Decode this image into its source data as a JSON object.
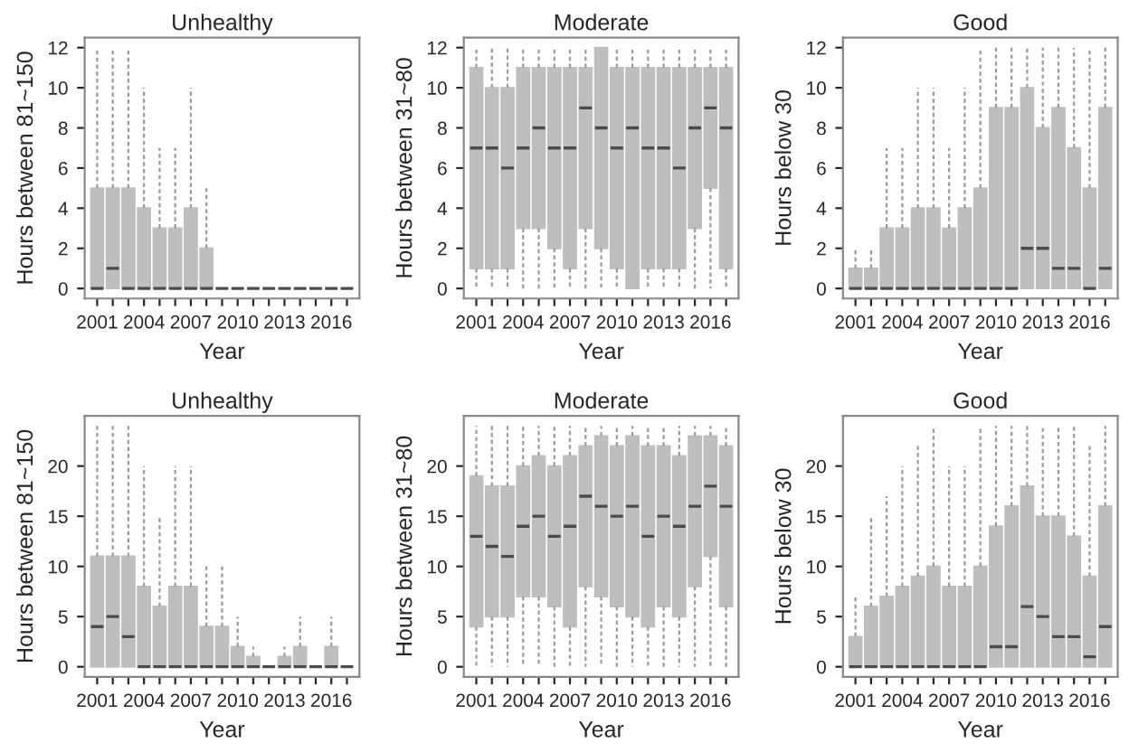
{
  "chart_data": [
    {
      "type": "box",
      "title": "Unhealthy",
      "xlabel": "Year",
      "ylabel": "Hours between 81~150",
      "categories": [
        "2001",
        null,
        null,
        "2004",
        null,
        null,
        "2007",
        null,
        null,
        "2010",
        null,
        null,
        "2013",
        null,
        null,
        "2016",
        null
      ],
      "ylim": [
        -0.5,
        12.5
      ],
      "yticks": [
        0,
        2,
        4,
        6,
        8,
        10,
        12
      ],
      "grid": false,
      "legend": false,
      "series": [
        {
          "color": "#bebebe",
          "boxes": [
            {
              "low": 0,
              "q1": 0,
              "median": 0,
              "q3": 5,
              "high": 12
            },
            {
              "low": 0,
              "q1": 0,
              "median": 1,
              "q3": 5,
              "high": 12
            },
            {
              "low": 0,
              "q1": 0,
              "median": 0,
              "q3": 5,
              "high": 12
            },
            {
              "low": 0,
              "q1": 0,
              "median": 0,
              "q3": 4,
              "high": 10
            },
            {
              "low": 0,
              "q1": 0,
              "median": 0,
              "q3": 3,
              "high": 7
            },
            {
              "low": 0,
              "q1": 0,
              "median": 0,
              "q3": 3,
              "high": 7
            },
            {
              "low": 0,
              "q1": 0,
              "median": 0,
              "q3": 4,
              "high": 10
            },
            {
              "low": 0,
              "q1": 0,
              "median": 0,
              "q3": 2,
              "high": 5
            },
            {
              "low": 0,
              "q1": 0,
              "median": 0,
              "q3": 0,
              "high": 0
            },
            {
              "low": 0,
              "q1": 0,
              "median": 0,
              "q3": 0,
              "high": 0
            },
            {
              "low": 0,
              "q1": 0,
              "median": 0,
              "q3": 0,
              "high": 0
            },
            {
              "low": 0,
              "q1": 0,
              "median": 0,
              "q3": 0,
              "high": 0
            },
            {
              "low": 0,
              "q1": 0,
              "median": 0,
              "q3": 0,
              "high": 0
            },
            {
              "low": 0,
              "q1": 0,
              "median": 0,
              "q3": 0,
              "high": 0
            },
            {
              "low": 0,
              "q1": 0,
              "median": 0,
              "q3": 0,
              "high": 0
            },
            {
              "low": 0,
              "q1": 0,
              "median": 0,
              "q3": 0,
              "high": 0
            },
            {
              "low": 0,
              "q1": 0,
              "median": 0,
              "q3": 0,
              "high": 0
            }
          ]
        }
      ]
    },
    {
      "type": "box",
      "title": "Moderate",
      "xlabel": "Year",
      "ylabel": "Hours between 31~80",
      "categories": [
        "2001",
        null,
        null,
        "2004",
        null,
        null,
        "2007",
        null,
        null,
        "2010",
        null,
        null,
        "2013",
        null,
        null,
        "2016",
        null
      ],
      "ylim": [
        -0.5,
        12.5
      ],
      "yticks": [
        0,
        2,
        4,
        6,
        8,
        10,
        12
      ],
      "grid": false,
      "legend": false,
      "series": [
        {
          "color": "#bebebe",
          "boxes": [
            {
              "low": 0,
              "q1": 1,
              "median": 7,
              "q3": 11,
              "high": 12
            },
            {
              "low": 0,
              "q1": 1,
              "median": 7,
              "q3": 10,
              "high": 12
            },
            {
              "low": 0,
              "q1": 1,
              "median": 6,
              "q3": 10,
              "high": 12
            },
            {
              "low": 0,
              "q1": 3,
              "median": 7,
              "q3": 11,
              "high": 12
            },
            {
              "low": 0,
              "q1": 3,
              "median": 8,
              "q3": 11,
              "high": 12
            },
            {
              "low": 0,
              "q1": 2,
              "median": 7,
              "q3": 11,
              "high": 12
            },
            {
              "low": 0,
              "q1": 1,
              "median": 7,
              "q3": 11,
              "high": 12
            },
            {
              "low": 0,
              "q1": 3,
              "median": 9,
              "q3": 11,
              "high": 12
            },
            {
              "low": 0,
              "q1": 2,
              "median": 8,
              "q3": 12,
              "high": 12
            },
            {
              "low": 0,
              "q1": 1,
              "median": 7,
              "q3": 11,
              "high": 12
            },
            {
              "low": 0,
              "q1": 0,
              "median": 8,
              "q3": 11,
              "high": 12
            },
            {
              "low": 0,
              "q1": 1,
              "median": 7,
              "q3": 11,
              "high": 12
            },
            {
              "low": 0,
              "q1": 1,
              "median": 7,
              "q3": 11,
              "high": 12
            },
            {
              "low": 0,
              "q1": 1,
              "median": 6,
              "q3": 11,
              "high": 12
            },
            {
              "low": 0,
              "q1": 3,
              "median": 8,
              "q3": 11,
              "high": 12
            },
            {
              "low": 0,
              "q1": 5,
              "median": 9,
              "q3": 11,
              "high": 12
            },
            {
              "low": 0,
              "q1": 1,
              "median": 8,
              "q3": 11,
              "high": 12
            }
          ]
        }
      ]
    },
    {
      "type": "box",
      "title": "Good",
      "xlabel": "Year",
      "ylabel": "Hours below 30",
      "categories": [
        "2001",
        null,
        null,
        "2004",
        null,
        null,
        "2007",
        null,
        null,
        "2010",
        null,
        null,
        "2013",
        null,
        null,
        "2016",
        null
      ],
      "ylim": [
        -0.5,
        12.5
      ],
      "yticks": [
        0,
        2,
        4,
        6,
        8,
        10,
        12
      ],
      "grid": false,
      "legend": false,
      "series": [
        {
          "color": "#bebebe",
          "boxes": [
            {
              "low": 0,
              "q1": 0,
              "median": 0,
              "q3": 1,
              "high": 2
            },
            {
              "low": 0,
              "q1": 0,
              "median": 0,
              "q3": 1,
              "high": 2
            },
            {
              "low": 0,
              "q1": 0,
              "median": 0,
              "q3": 3,
              "high": 7
            },
            {
              "low": 0,
              "q1": 0,
              "median": 0,
              "q3": 3,
              "high": 7
            },
            {
              "low": 0,
              "q1": 0,
              "median": 0,
              "q3": 4,
              "high": 10
            },
            {
              "low": 0,
              "q1": 0,
              "median": 0,
              "q3": 4,
              "high": 10
            },
            {
              "low": 0,
              "q1": 0,
              "median": 0,
              "q3": 3,
              "high": 7
            },
            {
              "low": 0,
              "q1": 0,
              "median": 0,
              "q3": 4,
              "high": 10
            },
            {
              "low": 0,
              "q1": 0,
              "median": 0,
              "q3": 5,
              "high": 12
            },
            {
              "low": 0,
              "q1": 0,
              "median": 0,
              "q3": 9,
              "high": 12
            },
            {
              "low": 0,
              "q1": 0,
              "median": 0,
              "q3": 9,
              "high": 12
            },
            {
              "low": 0,
              "q1": 0,
              "median": 2,
              "q3": 10,
              "high": 12
            },
            {
              "low": 0,
              "q1": 0,
              "median": 2,
              "q3": 8,
              "high": 12
            },
            {
              "low": 0,
              "q1": 0,
              "median": 1,
              "q3": 9,
              "high": 12
            },
            {
              "low": 0,
              "q1": 0,
              "median": 1,
              "q3": 7,
              "high": 12
            },
            {
              "low": 0,
              "q1": 0,
              "median": 0,
              "q3": 5,
              "high": 12
            },
            {
              "low": 0,
              "q1": 0,
              "median": 1,
              "q3": 9,
              "high": 12
            }
          ]
        }
      ]
    },
    {
      "type": "box",
      "title": "Unhealthy",
      "xlabel": "Year",
      "ylabel": "Hours between 81~150",
      "categories": [
        "2001",
        null,
        null,
        "2004",
        null,
        null,
        "2007",
        null,
        null,
        "2010",
        null,
        null,
        "2013",
        null,
        null,
        "2016",
        null
      ],
      "ylim": [
        -1,
        25
      ],
      "yticks": [
        0,
        5,
        10,
        15,
        20
      ],
      "grid": false,
      "legend": false,
      "series": [
        {
          "color": "#bebebe",
          "boxes": [
            {
              "low": 0,
              "q1": 0,
              "median": 4,
              "q3": 11,
              "high": 24
            },
            {
              "low": 0,
              "q1": 0,
              "median": 5,
              "q3": 11,
              "high": 24
            },
            {
              "low": 0,
              "q1": 0,
              "median": 3,
              "q3": 11,
              "high": 24
            },
            {
              "low": 0,
              "q1": 0,
              "median": 0,
              "q3": 8,
              "high": 20
            },
            {
              "low": 0,
              "q1": 0,
              "median": 0,
              "q3": 6,
              "high": 15
            },
            {
              "low": 0,
              "q1": 0,
              "median": 0,
              "q3": 8,
              "high": 20
            },
            {
              "low": 0,
              "q1": 0,
              "median": 0,
              "q3": 8,
              "high": 20
            },
            {
              "low": 0,
              "q1": 0,
              "median": 0,
              "q3": 4,
              "high": 10
            },
            {
              "low": 0,
              "q1": 0,
              "median": 0,
              "q3": 4,
              "high": 10
            },
            {
              "low": 0,
              "q1": 0,
              "median": 0,
              "q3": 2,
              "high": 5
            },
            {
              "low": 0,
              "q1": 0,
              "median": 0,
              "q3": 1,
              "high": 2
            },
            {
              "low": 0,
              "q1": 0,
              "median": 0,
              "q3": 0,
              "high": 0
            },
            {
              "low": 0,
              "q1": 0,
              "median": 0,
              "q3": 1,
              "high": 2
            },
            {
              "low": 0,
              "q1": 0,
              "median": 0,
              "q3": 2,
              "high": 5
            },
            {
              "low": 0,
              "q1": 0,
              "median": 0,
              "q3": 0,
              "high": 0
            },
            {
              "low": 0,
              "q1": 0,
              "median": 0,
              "q3": 2,
              "high": 5
            },
            {
              "low": 0,
              "q1": 0,
              "median": 0,
              "q3": 0,
              "high": 0
            }
          ]
        }
      ]
    },
    {
      "type": "box",
      "title": "Moderate",
      "xlabel": "Year",
      "ylabel": "Hours between 31~80",
      "categories": [
        "2001",
        null,
        null,
        "2004",
        null,
        null,
        "2007",
        null,
        null,
        "2010",
        null,
        null,
        "2013",
        null,
        null,
        "2016",
        null
      ],
      "ylim": [
        -1,
        25
      ],
      "yticks": [
        0,
        5,
        10,
        15,
        20
      ],
      "grid": false,
      "legend": false,
      "series": [
        {
          "color": "#bebebe",
          "boxes": [
            {
              "low": 0,
              "q1": 4,
              "median": 13,
              "q3": 19,
              "high": 24
            },
            {
              "low": 0,
              "q1": 5,
              "median": 12,
              "q3": 18,
              "high": 24
            },
            {
              "low": 0,
              "q1": 5,
              "median": 11,
              "q3": 18,
              "high": 24
            },
            {
              "low": 0,
              "q1": 7,
              "median": 14,
              "q3": 20,
              "high": 24
            },
            {
              "low": 0,
              "q1": 7,
              "median": 15,
              "q3": 21,
              "high": 24
            },
            {
              "low": 0,
              "q1": 6,
              "median": 13,
              "q3": 20,
              "high": 24
            },
            {
              "low": 0,
              "q1": 4,
              "median": 14,
              "q3": 21,
              "high": 24
            },
            {
              "low": 0,
              "q1": 8,
              "median": 17,
              "q3": 22,
              "high": 24
            },
            {
              "low": 0,
              "q1": 7,
              "median": 16,
              "q3": 23,
              "high": 24
            },
            {
              "low": 0,
              "q1": 6,
              "median": 15,
              "q3": 22,
              "high": 24
            },
            {
              "low": 0,
              "q1": 5,
              "median": 16,
              "q3": 23,
              "high": 24
            },
            {
              "low": 0,
              "q1": 4,
              "median": 13,
              "q3": 22,
              "high": 24
            },
            {
              "low": 0,
              "q1": 6,
              "median": 15,
              "q3": 22,
              "high": 24
            },
            {
              "low": 0,
              "q1": 5,
              "median": 14,
              "q3": 21,
              "high": 24
            },
            {
              "low": 0,
              "q1": 8,
              "median": 16,
              "q3": 23,
              "high": 24
            },
            {
              "low": 0,
              "q1": 11,
              "median": 18,
              "q3": 23,
              "high": 24
            },
            {
              "low": 0,
              "q1": 6,
              "median": 16,
              "q3": 22,
              "high": 24
            }
          ]
        }
      ]
    },
    {
      "type": "box",
      "title": "Good",
      "xlabel": "Year",
      "ylabel": "Hours below 30",
      "categories": [
        "2001",
        null,
        null,
        "2004",
        null,
        null,
        "2007",
        null,
        null,
        "2010",
        null,
        null,
        "2013",
        null,
        null,
        "2016",
        null
      ],
      "ylim": [
        -1,
        25
      ],
      "yticks": [
        0,
        5,
        10,
        15,
        20
      ],
      "grid": false,
      "legend": false,
      "series": [
        {
          "color": "#bebebe",
          "boxes": [
            {
              "low": 0,
              "q1": 0,
              "median": 0,
              "q3": 3,
              "high": 7
            },
            {
              "low": 0,
              "q1": 0,
              "median": 0,
              "q3": 6,
              "high": 15
            },
            {
              "low": 0,
              "q1": 0,
              "median": 0,
              "q3": 7,
              "high": 17
            },
            {
              "low": 0,
              "q1": 0,
              "median": 0,
              "q3": 8,
              "high": 20
            },
            {
              "low": 0,
              "q1": 0,
              "median": 0,
              "q3": 9,
              "high": 22
            },
            {
              "low": 0,
              "q1": 0,
              "median": 0,
              "q3": 10,
              "high": 24
            },
            {
              "low": 0,
              "q1": 0,
              "median": 0,
              "q3": 8,
              "high": 20
            },
            {
              "low": 0,
              "q1": 0,
              "median": 0,
              "q3": 8,
              "high": 20
            },
            {
              "low": 0,
              "q1": 0,
              "median": 0,
              "q3": 10,
              "high": 24
            },
            {
              "low": 0,
              "q1": 0,
              "median": 2,
              "q3": 14,
              "high": 24
            },
            {
              "low": 0,
              "q1": 0,
              "median": 2,
              "q3": 16,
              "high": 24
            },
            {
              "low": 0,
              "q1": 0,
              "median": 6,
              "q3": 18,
              "high": 24
            },
            {
              "low": 0,
              "q1": 0,
              "median": 5,
              "q3": 15,
              "high": 24
            },
            {
              "low": 0,
              "q1": 0,
              "median": 3,
              "q3": 15,
              "high": 24
            },
            {
              "low": 0,
              "q1": 0,
              "median": 3,
              "q3": 13,
              "high": 24
            },
            {
              "low": 0,
              "q1": 0,
              "median": 1,
              "q3": 9,
              "high": 22
            },
            {
              "low": 0,
              "q1": 0,
              "median": 4,
              "q3": 16,
              "high": 24
            }
          ]
        }
      ]
    }
  ]
}
